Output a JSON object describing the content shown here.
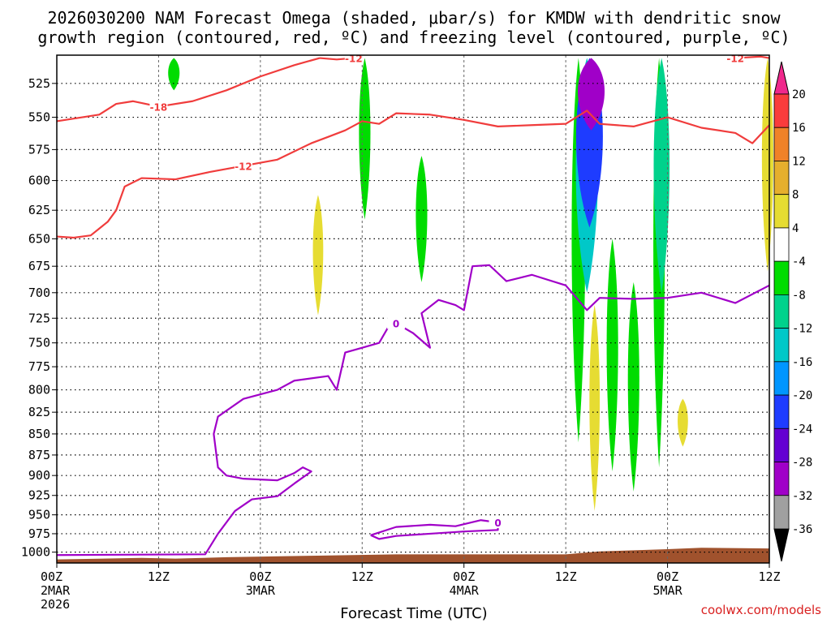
{
  "chart_data": {
    "type": "heatmap",
    "title_lines": [
      "2026030200 NAM Forecast Omega (shaded, μbar/s) for KMDW with dendritic snow",
      "growth region (contoured, red, ºC) and freezing level (contoured, purple, ºC)"
    ],
    "xlabel": "Forecast Time (UTC)",
    "x_ticks": [
      {
        "hour": 0,
        "lines": [
          "00Z",
          "2MAR",
          "2026"
        ]
      },
      {
        "hour": 12,
        "lines": [
          "12Z"
        ]
      },
      {
        "hour": 24,
        "lines": [
          "00Z",
          "3MAR"
        ]
      },
      {
        "hour": 36,
        "lines": [
          "12Z"
        ]
      },
      {
        "hour": 48,
        "lines": [
          "00Z",
          "4MAR"
        ]
      },
      {
        "hour": 60,
        "lines": [
          "12Z"
        ]
      },
      {
        "hour": 72,
        "lines": [
          "00Z",
          "5MAR"
        ]
      },
      {
        "hour": 84,
        "lines": [
          "12Z"
        ]
      }
    ],
    "x_range_hours": [
      0,
      84
    ],
    "y_ticks": [
      "525",
      "550",
      "575",
      "600",
      "625",
      "650",
      "675",
      "700",
      "725",
      "750",
      "775",
      "800",
      "825",
      "850",
      "875",
      "900",
      "925",
      "950",
      "975",
      "1000"
    ],
    "y_range_hpa": [
      505,
      1015
    ],
    "y_scale": "log-pressure",
    "grid": true,
    "colorbar": {
      "unit": "μbar/s",
      "bounds": [
        -36,
        -32,
        -28,
        -24,
        -20,
        -16,
        -12,
        -8,
        -4,
        4,
        8,
        12,
        16,
        20
      ],
      "labels": [
        "20",
        "16",
        "12",
        "8",
        "4",
        "-4",
        "-8",
        "-12",
        "-16",
        "-20",
        "-24",
        "-28",
        "-32",
        "-36"
      ],
      "colors": [
        "#a0a0a0",
        "#a000c8",
        "#6400d2",
        "#1e3cff",
        "#0096ff",
        "#00c8c8",
        "#00d28c",
        "#00dc00",
        "#ffffff",
        "#e6dc32",
        "#e6af2d",
        "#f08228",
        "#fa3c3c"
      ],
      "over_color": "#f0288c",
      "under_color": "#000000"
    },
    "shaded_regions": [
      {
        "hour": 13.8,
        "p_top": 507,
        "p_bot": 530,
        "omega": -6
      },
      {
        "hour": 30.8,
        "p_top": 612,
        "p_bot": 722,
        "omega": 5
      },
      {
        "hour": 36.3,
        "p_top": 507,
        "p_bot": 633,
        "omega": -6
      },
      {
        "hour": 43.0,
        "p_top": 580,
        "p_bot": 690,
        "omega": -6
      },
      {
        "hour": 61.5,
        "p_top": 507,
        "p_bot": 860,
        "omega": -8
      },
      {
        "hour": 62.5,
        "p_top": 507,
        "p_bot": 700,
        "omega": -16
      },
      {
        "hour": 62.8,
        "p_top": 507,
        "p_bot": 640,
        "omega": -24
      },
      {
        "hour": 63.0,
        "p_top": 507,
        "p_bot": 560,
        "omega": -30
      },
      {
        "hour": 63.4,
        "p_top": 712,
        "p_bot": 945,
        "omega": 5
      },
      {
        "hour": 65.5,
        "p_top": 650,
        "p_bot": 895,
        "omega": -6
      },
      {
        "hour": 68.0,
        "p_top": 690,
        "p_bot": 920,
        "omega": -6
      },
      {
        "hour": 71.0,
        "p_top": 507,
        "p_bot": 890,
        "omega": -6
      },
      {
        "hour": 71.3,
        "p_top": 507,
        "p_bot": 700,
        "omega": -10
      },
      {
        "hour": 73.8,
        "p_top": 810,
        "p_bot": 865,
        "omega": 5
      },
      {
        "hour": 83.8,
        "p_top": 507,
        "p_bot": 680,
        "omega": 6
      }
    ],
    "terrain_surface": {
      "color": "#a0522d",
      "points": [
        [
          0,
          1010
        ],
        [
          10,
          1008
        ],
        [
          14,
          1009
        ],
        [
          20,
          1007
        ],
        [
          30,
          1005
        ],
        [
          40,
          1003
        ],
        [
          50,
          1003
        ],
        [
          60,
          1003
        ],
        [
          64,
          999
        ],
        [
          72,
          996
        ],
        [
          76,
          994
        ],
        [
          84,
          995
        ]
      ]
    },
    "contours": [
      {
        "name": "-18",
        "color": "#f03c3c",
        "label_hour": 11.5,
        "points": [
          [
            0,
            553
          ],
          [
            3,
            550
          ],
          [
            5,
            548
          ],
          [
            7,
            540
          ],
          [
            9,
            538
          ],
          [
            12,
            542
          ],
          [
            16,
            538
          ],
          [
            20,
            530
          ],
          [
            24,
            520
          ],
          [
            28,
            512
          ],
          [
            31,
            507
          ]
        ]
      },
      {
        "name": "-12",
        "color": "#f03c3c",
        "label_hour": 22.5,
        "points": [
          [
            0,
            648
          ],
          [
            2,
            649
          ],
          [
            4,
            647
          ],
          [
            6,
            635
          ],
          [
            7,
            625
          ],
          [
            8,
            605
          ],
          [
            10,
            598
          ],
          [
            14,
            599
          ],
          [
            18,
            593
          ],
          [
            22,
            588
          ],
          [
            26,
            583
          ],
          [
            30,
            570
          ],
          [
            32,
            565
          ],
          [
            34,
            560
          ],
          [
            36,
            553
          ],
          [
            38,
            555
          ],
          [
            40,
            547
          ],
          [
            44,
            548
          ],
          [
            48,
            552
          ],
          [
            52,
            557
          ],
          [
            56,
            556
          ],
          [
            60,
            555
          ],
          [
            62.5,
            545
          ],
          [
            64,
            555
          ],
          [
            68,
            557
          ],
          [
            72,
            550
          ],
          [
            76,
            558
          ],
          [
            80,
            562
          ],
          [
            82,
            570
          ],
          [
            84,
            556
          ]
        ]
      },
      {
        "name": "-12",
        "color": "#f03c3c",
        "label_hour": 44.5,
        "points": [
          [
            31,
            507
          ],
          [
            33,
            508
          ],
          [
            35,
            507
          ]
        ]
      },
      {
        "name": "-12",
        "color": "#f03c3c",
        "label_hour": 79.0,
        "points": [
          [
            80,
            507
          ],
          [
            83,
            506
          ],
          [
            84,
            507
          ]
        ]
      },
      {
        "name": "0",
        "color": "#a000c8",
        "label_hour": 40.5,
        "points": [
          [
            0,
            1004
          ],
          [
            17.5,
            1003
          ],
          [
            19,
            975
          ],
          [
            21,
            945
          ],
          [
            23,
            930
          ],
          [
            26,
            926
          ],
          [
            28,
            910
          ],
          [
            30,
            895
          ],
          [
            29,
            890
          ],
          [
            28,
            897
          ],
          [
            26,
            906
          ],
          [
            24,
            905
          ],
          [
            22,
            904
          ],
          [
            20,
            900
          ],
          [
            19,
            890
          ],
          [
            18.5,
            850
          ],
          [
            19,
            830
          ],
          [
            22,
            810
          ],
          [
            26,
            800
          ],
          [
            28,
            790
          ],
          [
            32,
            785
          ],
          [
            33,
            800
          ],
          [
            34,
            760
          ],
          [
            36,
            755
          ],
          [
            38,
            750
          ],
          [
            39,
            735
          ],
          [
            40,
            730
          ],
          [
            42,
            740
          ],
          [
            44,
            755
          ],
          [
            43,
            720
          ],
          [
            45,
            707
          ],
          [
            47,
            712
          ],
          [
            48,
            717
          ],
          [
            49,
            675
          ],
          [
            51,
            674
          ],
          [
            53,
            689
          ],
          [
            56,
            683
          ],
          [
            60,
            693
          ],
          [
            62.5,
            717
          ],
          [
            64,
            705
          ],
          [
            68,
            706
          ],
          [
            72,
            705
          ],
          [
            76,
            700
          ],
          [
            80,
            710
          ],
          [
            84,
            693
          ]
        ]
      },
      {
        "name": "0",
        "color": "#a000c8",
        "label_hour": 53.0,
        "points": [
          [
            37,
            977
          ],
          [
            40,
            966
          ],
          [
            44,
            963
          ],
          [
            47,
            965
          ],
          [
            50,
            957
          ],
          [
            52,
            960
          ],
          [
            52,
            970
          ],
          [
            48,
            972
          ],
          [
            44,
            975
          ],
          [
            40,
            978
          ],
          [
            38,
            982
          ],
          [
            37,
            977
          ]
        ]
      }
    ],
    "watermark": "coolwx.com/models"
  }
}
